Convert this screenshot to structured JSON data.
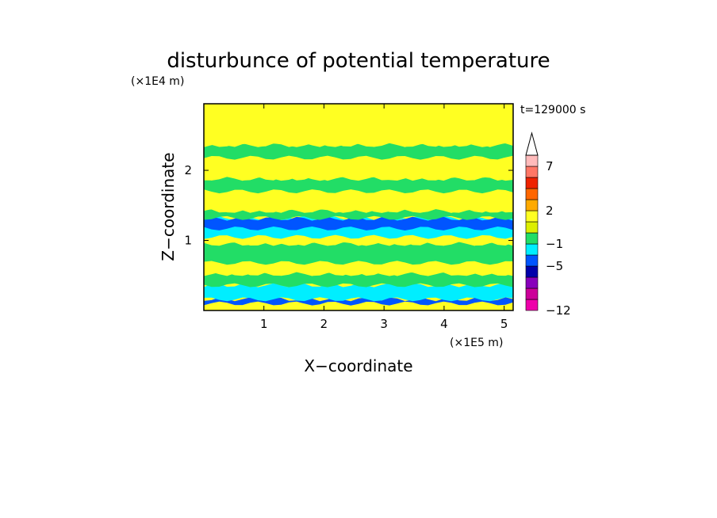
{
  "chart_data": {
    "type": "heatmap",
    "title": "disturbunce of potential temperature",
    "time_label": "t=129000 s",
    "xlabel": "X−coordinate",
    "ylabel": "Z−coordinate",
    "x_unit": "(×1E5 m)",
    "y_unit": "(×1E4 m)",
    "xlim": [
      0,
      5.15
    ],
    "ylim": [
      0,
      2.95
    ],
    "x_ticks": [
      "1",
      "2",
      "3",
      "4",
      "5"
    ],
    "y_ticks": [
      "1",
      "2"
    ],
    "colorbar": {
      "labels": [
        {
          "text": "7",
          "value": 7
        },
        {
          "text": "2",
          "value": 2
        },
        {
          "text": "−1",
          "value": -1
        },
        {
          "text": "−5",
          "value": -5
        },
        {
          "text": "−12",
          "value": -12
        }
      ],
      "colors": [
        "#ee00aa",
        "#cc0099",
        "#8800bb",
        "#0000aa",
        "#0055ff",
        "#00eeff",
        "#22dd66",
        "#ddee00",
        "#ffff22",
        "#ffaa00",
        "#ff6600",
        "#ee2200",
        "#ff7766",
        "#ffbbbb"
      ],
      "extend": "max"
    },
    "bands": [
      {
        "z0": 0.0,
        "z1": 0.1,
        "color": "#ffff22"
      },
      {
        "z0": 0.1,
        "z1": 0.16,
        "color": "#0055ff"
      },
      {
        "z0": 0.16,
        "z1": 0.36,
        "color": "#00eeff"
      },
      {
        "z0": 0.36,
        "z1": 0.52,
        "color": "#22dd66"
      },
      {
        "z0": 0.52,
        "z1": 0.68,
        "color": "#ffff22"
      },
      {
        "z0": 0.68,
        "z1": 0.95,
        "color": "#22dd66"
      },
      {
        "z0": 0.95,
        "z1": 1.05,
        "color": "#ffff22"
      },
      {
        "z0": 1.05,
        "z1": 1.3,
        "color": "#00eeff"
      },
      {
        "z0": 1.3,
        "z1": 1.32,
        "color": "#00eeff"
      },
      {
        "z0": 1.17,
        "z1": 1.31,
        "color": "#0055ff"
      },
      {
        "z0": 1.32,
        "z1": 1.42,
        "color": "#22dd66"
      },
      {
        "z0": 1.42,
        "z1": 1.7,
        "color": "#ffff22"
      },
      {
        "z0": 1.7,
        "z1": 1.88,
        "color": "#22dd66"
      },
      {
        "z0": 1.88,
        "z1": 2.18,
        "color": "#ffff22"
      },
      {
        "z0": 2.18,
        "z1": 2.36,
        "color": "#22dd66"
      },
      {
        "z0": 2.36,
        "z1": 2.95,
        "color": "#ffff22"
      }
    ]
  }
}
